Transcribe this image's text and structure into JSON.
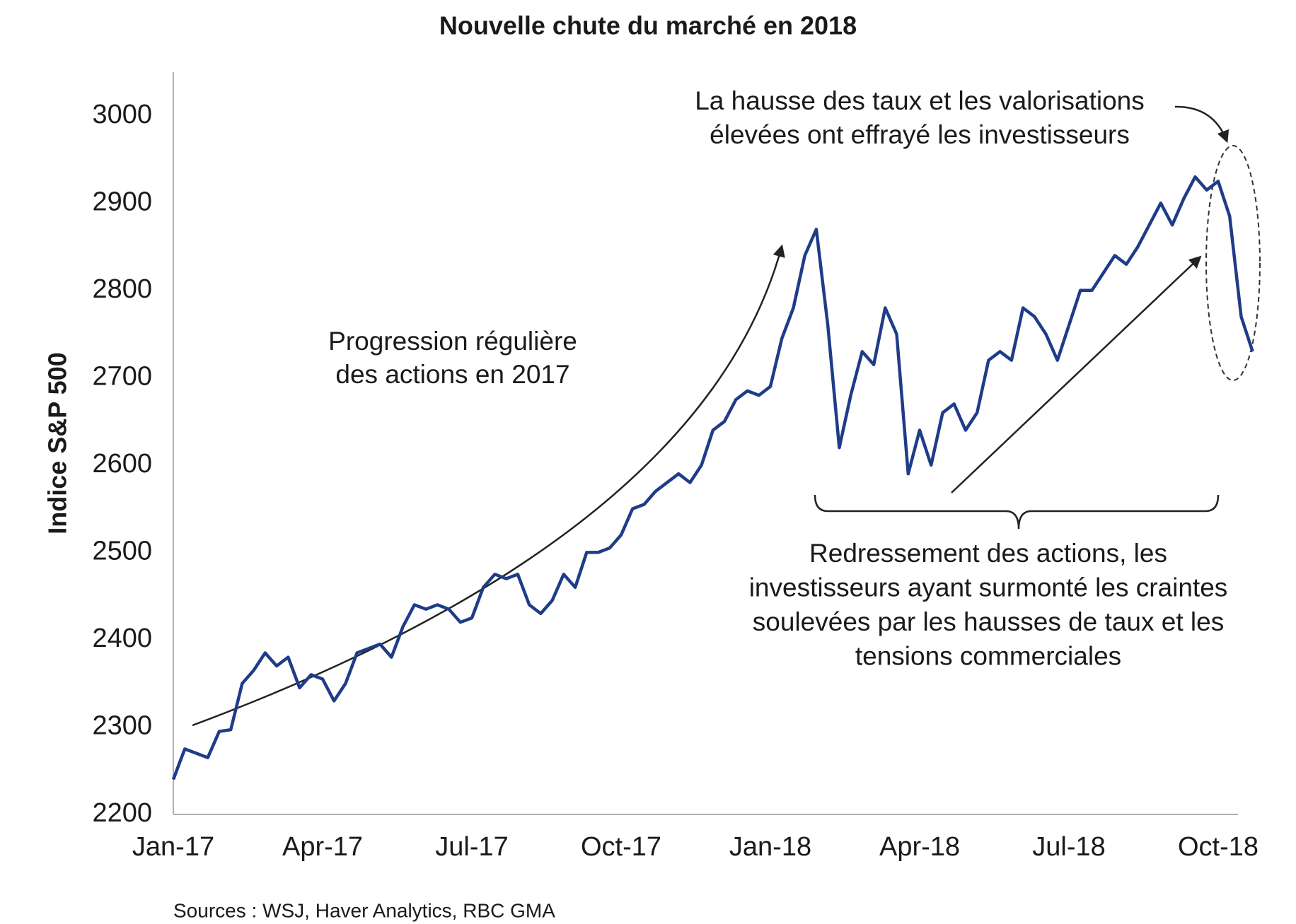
{
  "chart_data": {
    "type": "line",
    "title": "Nouvelle chute du marché en 2018",
    "y_label": "Indice S&P 500",
    "categories": [
      "Jan-17",
      null,
      null,
      null,
      null,
      null,
      null,
      null,
      null,
      null,
      null,
      null,
      null,
      "Apr-17",
      null,
      null,
      null,
      null,
      null,
      null,
      null,
      null,
      null,
      null,
      null,
      null,
      "Jul-17",
      null,
      null,
      null,
      null,
      null,
      null,
      null,
      null,
      null,
      null,
      null,
      null,
      "Oct-17",
      null,
      null,
      null,
      null,
      null,
      null,
      null,
      null,
      null,
      null,
      null,
      null,
      "Jan-18",
      null,
      null,
      null,
      null,
      null,
      null,
      null,
      null,
      null,
      null,
      null,
      null,
      "Apr-18",
      null,
      null,
      null,
      null,
      null,
      null,
      null,
      null,
      null,
      null,
      null,
      null,
      "Jul-18",
      null,
      null,
      null,
      null,
      null,
      null,
      null,
      null,
      null,
      null,
      null,
      null,
      "Oct-18",
      null,
      null,
      null
    ],
    "series": [
      {
        "color": "#1f3c88",
        "values": [
          2240,
          2275,
          2270,
          2265,
          2295,
          2297,
          2350,
          2365,
          2385,
          2370,
          2380,
          2345,
          2360,
          2355,
          2330,
          2350,
          2385,
          2390,
          2395,
          2380,
          2415,
          2440,
          2435,
          2440,
          2435,
          2420,
          2425,
          2460,
          2475,
          2470,
          2475,
          2440,
          2430,
          2445,
          2475,
          2460,
          2500,
          2500,
          2505,
          2520,
          2550,
          2555,
          2570,
          2580,
          2590,
          2580,
          2600,
          2640,
          2650,
          2675,
          2685,
          2680,
          2690,
          2745,
          2780,
          2840,
          2870,
          2760,
          2620,
          2680,
          2730,
          2715,
          2780,
          2750,
          2590,
          2640,
          2600,
          2660,
          2670,
          2640,
          2660,
          2720,
          2730,
          2720,
          2780,
          2770,
          2750,
          2720,
          2760,
          2800,
          2800,
          2820,
          2840,
          2830,
          2850,
          2875,
          2900,
          2875,
          2905,
          2930,
          2915,
          2925,
          2885,
          2770,
          2730
        ]
      }
    ],
    "ylim": [
      2200,
      3050
    ],
    "yticks": [
      2200,
      2300,
      2400,
      2500,
      2600,
      2700,
      2800,
      2900,
      3000
    ],
    "grid": false,
    "annotations": [
      {
        "lines": [
          "Progression régulière",
          "des actions en 2017"
        ]
      },
      {
        "lines": [
          "La hausse des taux et les valorisations",
          "élevées ont effrayé les investisseurs"
        ]
      },
      {
        "lines": [
          "Redressement des actions, les",
          "investisseurs ayant surmonté les craintes",
          "soulevées par les hausses de taux et les",
          "tensions commerciales"
        ]
      }
    ],
    "source": "Sources : WSJ, Haver Analytics, RBC GMA"
  }
}
